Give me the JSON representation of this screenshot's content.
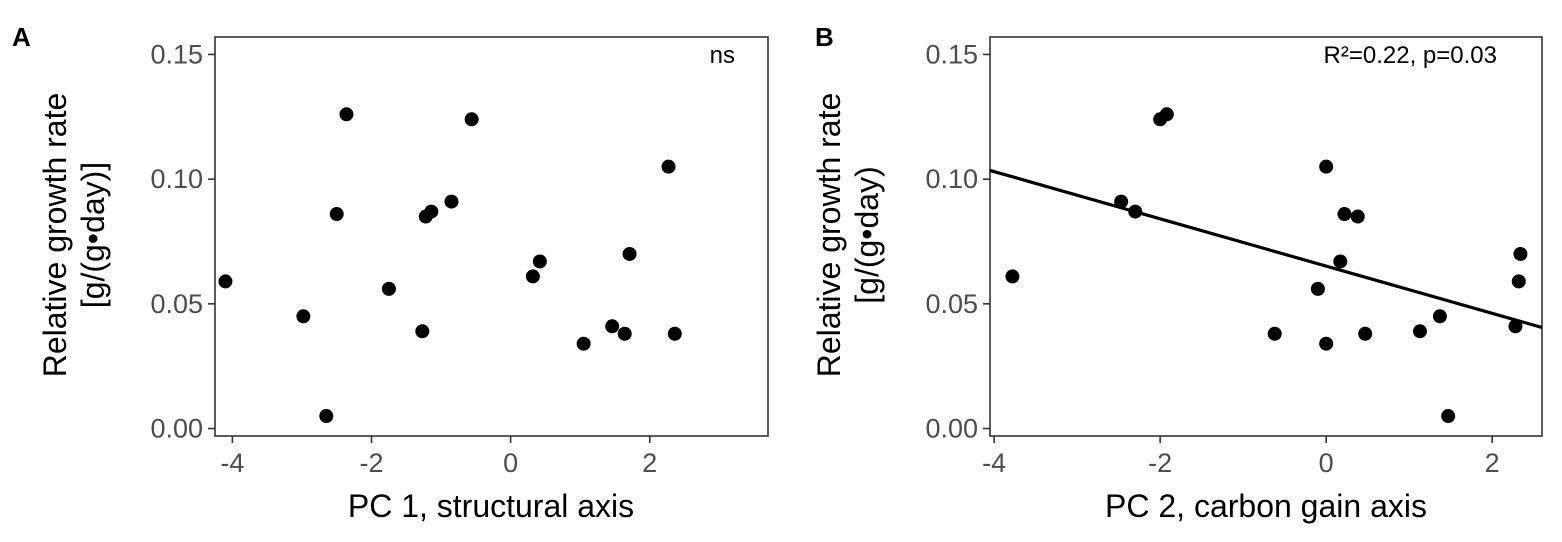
{
  "chart_data": [
    {
      "panel": "A",
      "type": "scatter",
      "xlabel": "PC 1, structural axis",
      "ylabel_lines": [
        "Relative growth rate",
        "[g/(g•day)]"
      ],
      "annotation": "ns",
      "xlim": [
        -4.25,
        3.7
      ],
      "ylim": [
        -0.003,
        0.157
      ],
      "xticks": [
        -4,
        -2,
        0,
        2
      ],
      "xtick_labels": [
        "-4",
        "-2",
        "0",
        "2"
      ],
      "yticks": [
        0.0,
        0.05,
        0.1,
        0.15
      ],
      "ytick_labels": [
        "0.00",
        "0.05",
        "0.10",
        "0.15"
      ],
      "grid": false,
      "points": [
        {
          "x": -4.1,
          "y": 0.059
        },
        {
          "x": -2.98,
          "y": 0.045
        },
        {
          "x": -2.65,
          "y": 0.005
        },
        {
          "x": -2.5,
          "y": 0.086
        },
        {
          "x": -2.36,
          "y": 0.126
        },
        {
          "x": -1.75,
          "y": 0.056
        },
        {
          "x": -1.27,
          "y": 0.039
        },
        {
          "x": -1.22,
          "y": 0.085
        },
        {
          "x": -1.14,
          "y": 0.087
        },
        {
          "x": -0.85,
          "y": 0.091
        },
        {
          "x": -0.56,
          "y": 0.124
        },
        {
          "x": 0.32,
          "y": 0.061
        },
        {
          "x": 0.42,
          "y": 0.067
        },
        {
          "x": 1.05,
          "y": 0.034
        },
        {
          "x": 1.46,
          "y": 0.041
        },
        {
          "x": 1.64,
          "y": 0.038
        },
        {
          "x": 1.71,
          "y": 0.07
        },
        {
          "x": 2.27,
          "y": 0.105
        },
        {
          "x": 2.36,
          "y": 0.038
        }
      ]
    },
    {
      "panel": "B",
      "type": "scatter",
      "xlabel": "PC 2, carbon gain axis",
      "ylabel_lines": [
        "Relative growth rate",
        "[g/(g•day)"
      ],
      "annotation": "R²=0.22, p=0.03",
      "xlim": [
        -4.05,
        2.6
      ],
      "ylim": [
        -0.003,
        0.157
      ],
      "xticks": [
        -4,
        -2,
        0,
        2
      ],
      "xtick_labels": [
        "-4",
        "-2",
        "0",
        "2"
      ],
      "yticks": [
        0.0,
        0.05,
        0.1,
        0.15
      ],
      "ytick_labels": [
        "0.00",
        "0.05",
        "0.10",
        "0.15"
      ],
      "grid": false,
      "points": [
        {
          "x": -3.78,
          "y": 0.061
        },
        {
          "x": -2.47,
          "y": 0.091
        },
        {
          "x": -2.3,
          "y": 0.087
        },
        {
          "x": -2.0,
          "y": 0.124
        },
        {
          "x": -1.92,
          "y": 0.126
        },
        {
          "x": -0.62,
          "y": 0.038
        },
        {
          "x": -0.1,
          "y": 0.056
        },
        {
          "x": 0.0,
          "y": 0.105
        },
        {
          "x": 0.0,
          "y": 0.034
        },
        {
          "x": 0.17,
          "y": 0.067
        },
        {
          "x": 0.22,
          "y": 0.086
        },
        {
          "x": 0.38,
          "y": 0.085
        },
        {
          "x": 0.47,
          "y": 0.038
        },
        {
          "x": 1.13,
          "y": 0.039
        },
        {
          "x": 1.37,
          "y": 0.045
        },
        {
          "x": 1.47,
          "y": 0.005
        },
        {
          "x": 2.28,
          "y": 0.041
        },
        {
          "x": 2.32,
          "y": 0.059
        },
        {
          "x": 2.34,
          "y": 0.07
        }
      ],
      "fit_line": {
        "x": [
          -4.05,
          2.6
        ],
        "y": [
          0.1035,
          0.0405
        ]
      }
    }
  ]
}
